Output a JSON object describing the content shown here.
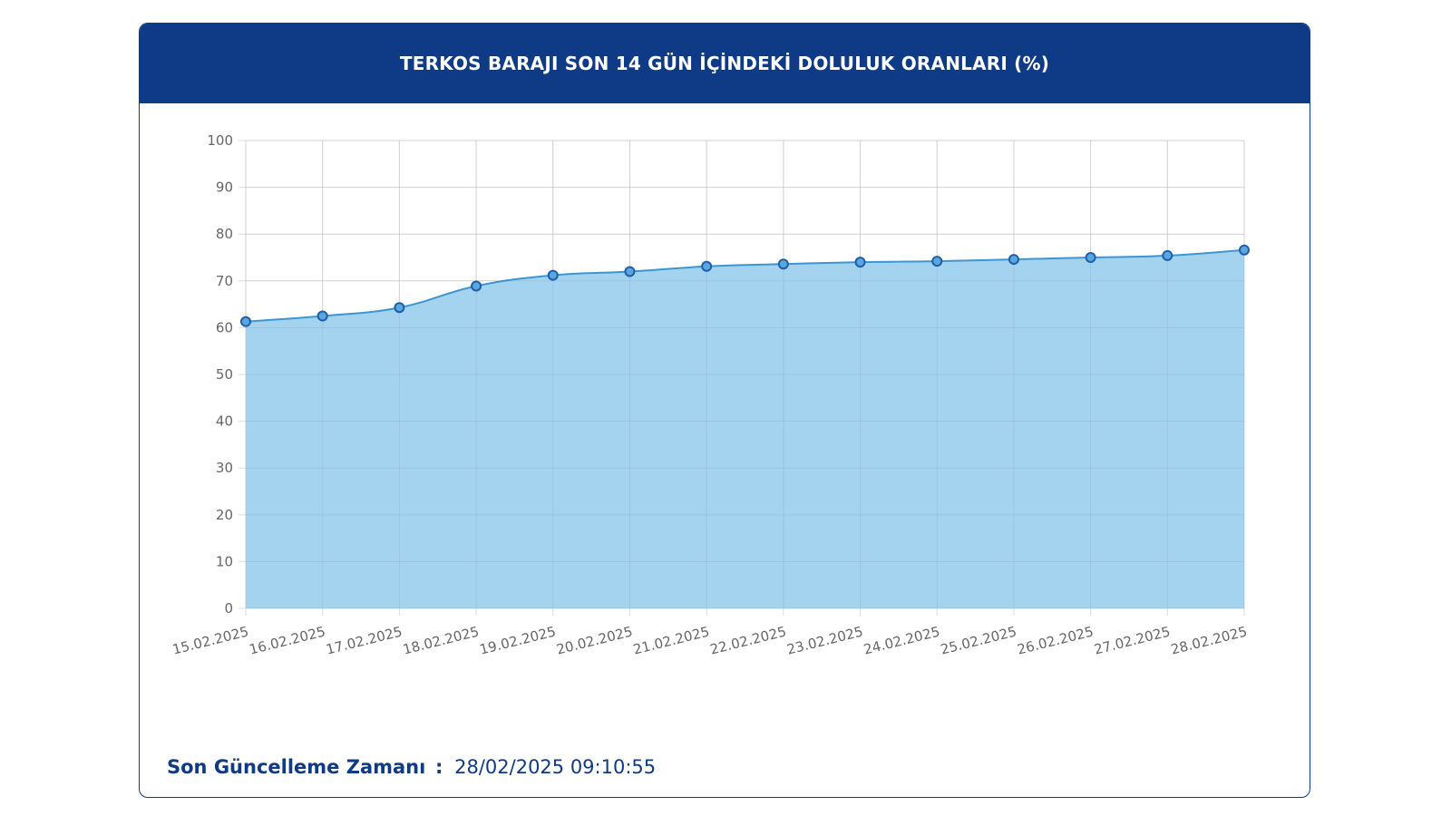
{
  "card": {
    "title": "TERKOS BARAJI SON 14 GÜN İÇİNDEKİ DOLULUK ORANLARI (%)",
    "last_update_label": "Son Güncelleme Zamanı",
    "last_update_separator": ":",
    "last_update_value": "28/02/2025 09:10:55"
  },
  "colors": {
    "header_bg": "#0f3a85",
    "area_fill": "#9fd1ee",
    "line": "#3d95d3",
    "point_fill": "#5aa6e0",
    "point_border": "#1f5fa8",
    "grid": "#dddddd",
    "tick_text": "#666666"
  },
  "chart_data": {
    "type": "area",
    "title": "TERKOS BARAJI SON 14 GÜN İÇİNDEKİ DOLULUK ORANLARI (%)",
    "xlabel": "",
    "ylabel": "",
    "categories": [
      "15.02.2025",
      "16.02.2025",
      "17.02.2025",
      "18.02.2025",
      "19.02.2025",
      "20.02.2025",
      "21.02.2025",
      "22.02.2025",
      "23.02.2025",
      "24.02.2025",
      "25.02.2025",
      "26.02.2025",
      "27.02.2025",
      "28.02.2025"
    ],
    "values": [
      61.3,
      62.5,
      64.3,
      68.9,
      71.2,
      72.0,
      73.1,
      73.6,
      74.0,
      74.2,
      74.6,
      75.0,
      75.4,
      76.6
    ],
    "ylim": [
      0,
      100
    ],
    "yticks": [
      0,
      10,
      20,
      30,
      40,
      50,
      60,
      70,
      80,
      90,
      100
    ],
    "grid": true,
    "legend": "none"
  }
}
